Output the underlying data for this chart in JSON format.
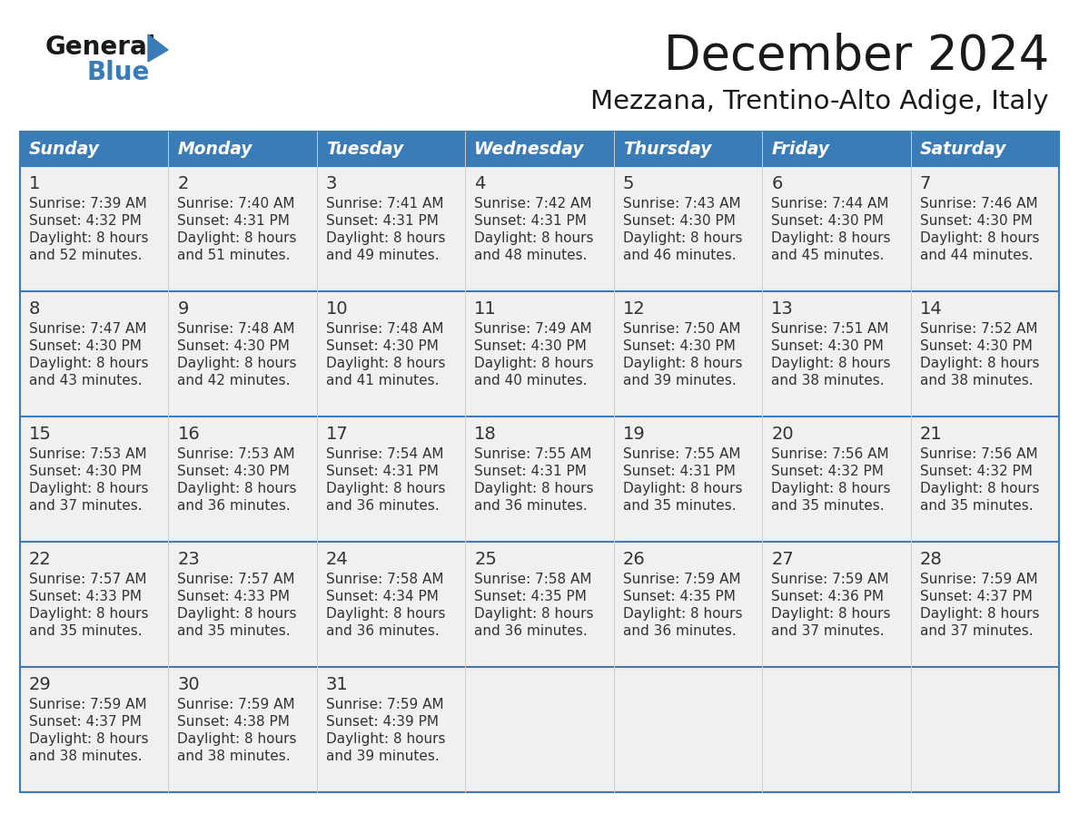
{
  "title": "December 2024",
  "subtitle": "Mezzana, Trentino-Alto Adige, Italy",
  "days_of_week": [
    "Sunday",
    "Monday",
    "Tuesday",
    "Wednesday",
    "Thursday",
    "Friday",
    "Saturday"
  ],
  "header_bg": "#3a7cb8",
  "header_text": "#ffffff",
  "cell_bg": "#f0f0f0",
  "border_color": "#3a7cb8",
  "text_color": "#333333",
  "title_color": "#1a1a1a",
  "logo_general_color": "#1a1a1a",
  "logo_blue_color": "#3a7cb8",
  "weeks": [
    [
      {
        "day": 1,
        "sunrise": "7:39 AM",
        "sunset": "4:32 PM",
        "daylight_h": "8 hours",
        "daylight_m": "52 minutes"
      },
      {
        "day": 2,
        "sunrise": "7:40 AM",
        "sunset": "4:31 PM",
        "daylight_h": "8 hours",
        "daylight_m": "51 minutes"
      },
      {
        "day": 3,
        "sunrise": "7:41 AM",
        "sunset": "4:31 PM",
        "daylight_h": "8 hours",
        "daylight_m": "49 minutes"
      },
      {
        "day": 4,
        "sunrise": "7:42 AM",
        "sunset": "4:31 PM",
        "daylight_h": "8 hours",
        "daylight_m": "48 minutes"
      },
      {
        "day": 5,
        "sunrise": "7:43 AM",
        "sunset": "4:30 PM",
        "daylight_h": "8 hours",
        "daylight_m": "46 minutes"
      },
      {
        "day": 6,
        "sunrise": "7:44 AM",
        "sunset": "4:30 PM",
        "daylight_h": "8 hours",
        "daylight_m": "45 minutes"
      },
      {
        "day": 7,
        "sunrise": "7:46 AM",
        "sunset": "4:30 PM",
        "daylight_h": "8 hours",
        "daylight_m": "44 minutes"
      }
    ],
    [
      {
        "day": 8,
        "sunrise": "7:47 AM",
        "sunset": "4:30 PM",
        "daylight_h": "8 hours",
        "daylight_m": "43 minutes"
      },
      {
        "day": 9,
        "sunrise": "7:48 AM",
        "sunset": "4:30 PM",
        "daylight_h": "8 hours",
        "daylight_m": "42 minutes"
      },
      {
        "day": 10,
        "sunrise": "7:48 AM",
        "sunset": "4:30 PM",
        "daylight_h": "8 hours",
        "daylight_m": "41 minutes"
      },
      {
        "day": 11,
        "sunrise": "7:49 AM",
        "sunset": "4:30 PM",
        "daylight_h": "8 hours",
        "daylight_m": "40 minutes"
      },
      {
        "day": 12,
        "sunrise": "7:50 AM",
        "sunset": "4:30 PM",
        "daylight_h": "8 hours",
        "daylight_m": "39 minutes"
      },
      {
        "day": 13,
        "sunrise": "7:51 AM",
        "sunset": "4:30 PM",
        "daylight_h": "8 hours",
        "daylight_m": "38 minutes"
      },
      {
        "day": 14,
        "sunrise": "7:52 AM",
        "sunset": "4:30 PM",
        "daylight_h": "8 hours",
        "daylight_m": "38 minutes"
      }
    ],
    [
      {
        "day": 15,
        "sunrise": "7:53 AM",
        "sunset": "4:30 PM",
        "daylight_h": "8 hours",
        "daylight_m": "37 minutes"
      },
      {
        "day": 16,
        "sunrise": "7:53 AM",
        "sunset": "4:30 PM",
        "daylight_h": "8 hours",
        "daylight_m": "36 minutes"
      },
      {
        "day": 17,
        "sunrise": "7:54 AM",
        "sunset": "4:31 PM",
        "daylight_h": "8 hours",
        "daylight_m": "36 minutes"
      },
      {
        "day": 18,
        "sunrise": "7:55 AM",
        "sunset": "4:31 PM",
        "daylight_h": "8 hours",
        "daylight_m": "36 minutes"
      },
      {
        "day": 19,
        "sunrise": "7:55 AM",
        "sunset": "4:31 PM",
        "daylight_h": "8 hours",
        "daylight_m": "35 minutes"
      },
      {
        "day": 20,
        "sunrise": "7:56 AM",
        "sunset": "4:32 PM",
        "daylight_h": "8 hours",
        "daylight_m": "35 minutes"
      },
      {
        "day": 21,
        "sunrise": "7:56 AM",
        "sunset": "4:32 PM",
        "daylight_h": "8 hours",
        "daylight_m": "35 minutes"
      }
    ],
    [
      {
        "day": 22,
        "sunrise": "7:57 AM",
        "sunset": "4:33 PM",
        "daylight_h": "8 hours",
        "daylight_m": "35 minutes"
      },
      {
        "day": 23,
        "sunrise": "7:57 AM",
        "sunset": "4:33 PM",
        "daylight_h": "8 hours",
        "daylight_m": "35 minutes"
      },
      {
        "day": 24,
        "sunrise": "7:58 AM",
        "sunset": "4:34 PM",
        "daylight_h": "8 hours",
        "daylight_m": "36 minutes"
      },
      {
        "day": 25,
        "sunrise": "7:58 AM",
        "sunset": "4:35 PM",
        "daylight_h": "8 hours",
        "daylight_m": "36 minutes"
      },
      {
        "day": 26,
        "sunrise": "7:59 AM",
        "sunset": "4:35 PM",
        "daylight_h": "8 hours",
        "daylight_m": "36 minutes"
      },
      {
        "day": 27,
        "sunrise": "7:59 AM",
        "sunset": "4:36 PM",
        "daylight_h": "8 hours",
        "daylight_m": "37 minutes"
      },
      {
        "day": 28,
        "sunrise": "7:59 AM",
        "sunset": "4:37 PM",
        "daylight_h": "8 hours",
        "daylight_m": "37 minutes"
      }
    ],
    [
      {
        "day": 29,
        "sunrise": "7:59 AM",
        "sunset": "4:37 PM",
        "daylight_h": "8 hours",
        "daylight_m": "38 minutes"
      },
      {
        "day": 30,
        "sunrise": "7:59 AM",
        "sunset": "4:38 PM",
        "daylight_h": "8 hours",
        "daylight_m": "38 minutes"
      },
      {
        "day": 31,
        "sunrise": "7:59 AM",
        "sunset": "4:39 PM",
        "daylight_h": "8 hours",
        "daylight_m": "39 minutes"
      },
      null,
      null,
      null,
      null
    ]
  ]
}
